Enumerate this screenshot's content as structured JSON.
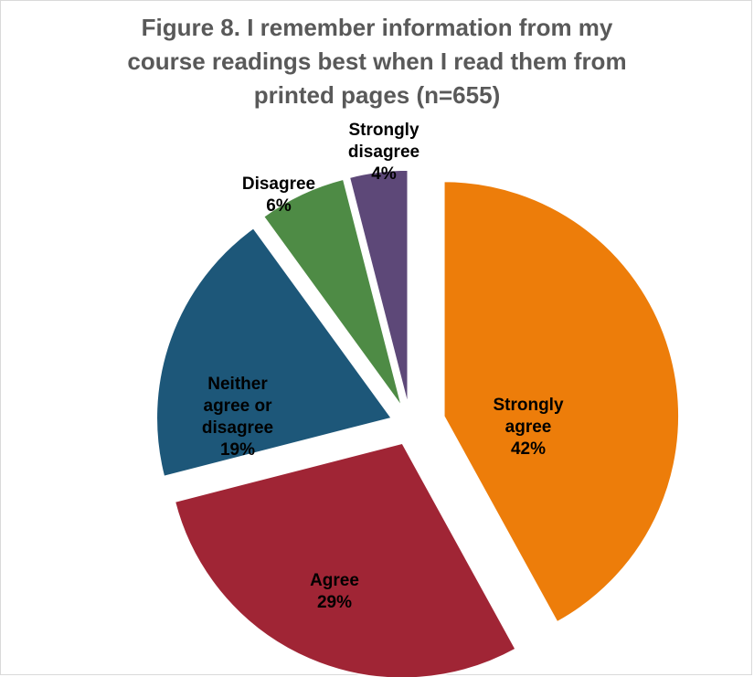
{
  "chart_data": {
    "type": "pie",
    "title_lines": [
      "Figure 8. I remember information from my",
      "course readings best when I read them from",
      "printed pages (n=655)"
    ],
    "slices": [
      {
        "label_lines": [
          "Strongly",
          "agree"
        ],
        "percent_label": "42%",
        "value": 42,
        "color": "#ED7D0A"
      },
      {
        "label_lines": [
          "Agree"
        ],
        "percent_label": "29%",
        "value": 29,
        "color": "#A02535"
      },
      {
        "label_lines": [
          "Neither",
          "agree or",
          "disagree"
        ],
        "percent_label": "19%",
        "value": 19,
        "color": "#1D5779"
      },
      {
        "label_lines": [
          "Disagree"
        ],
        "percent_label": "6%",
        "value": 6,
        "color": "#4E8B45"
      },
      {
        "label_lines": [
          "Strongly",
          "disagree"
        ],
        "percent_label": "4%",
        "value": 4,
        "color": "#5D4878"
      }
    ],
    "exploded": true,
    "legend": "none",
    "data_labels": "category and percentage"
  }
}
